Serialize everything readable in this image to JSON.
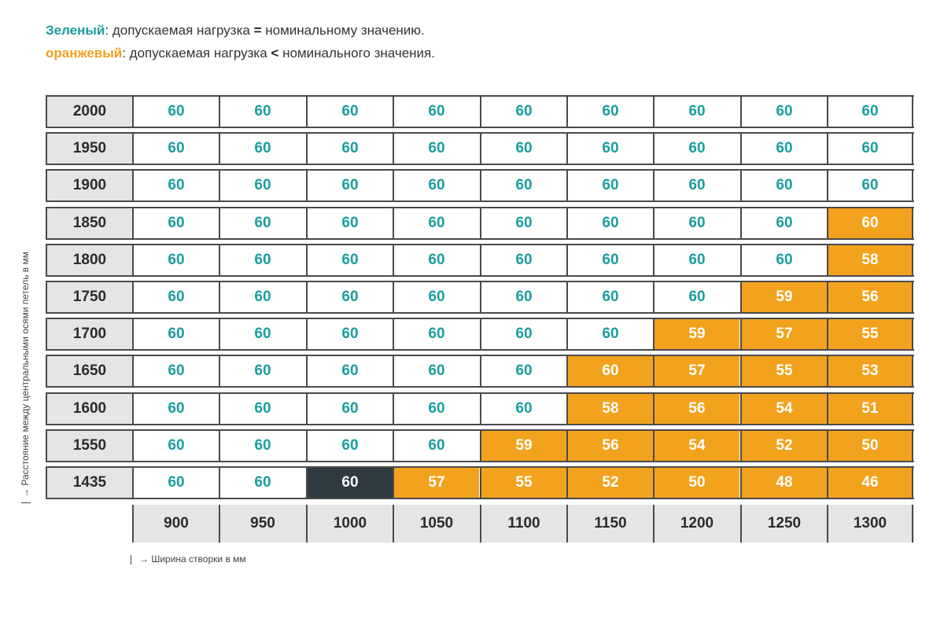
{
  "legend": {
    "green_word": "Зеленый",
    "green_rest": ": допускаемая нагрузка ",
    "green_sym": "=",
    "green_tail": " номинальному значению.",
    "orange_word": "оранжевый",
    "orange_rest": ": допускаемая нагрузка ",
    "orange_sym": "<",
    "orange_tail": " номинального значения."
  },
  "colors": {
    "green_text": "#1a9e9e",
    "orange_fill": "#f3a21e",
    "dark_fill": "#2f3b41",
    "header_gray": "#e4e5e6"
  },
  "axes": {
    "y_label": "Расстояние между центральными осями петель в мм",
    "x_label": "Ширина створки в мм",
    "arrow": "→"
  },
  "columns": [
    "900",
    "950",
    "1000",
    "1050",
    "1100",
    "1150",
    "1200",
    "1250",
    "1300"
  ],
  "rows": [
    {
      "label": "2000",
      "cells": [
        {
          "v": "60",
          "s": "green"
        },
        {
          "v": "60",
          "s": "green"
        },
        {
          "v": "60",
          "s": "green"
        },
        {
          "v": "60",
          "s": "green"
        },
        {
          "v": "60",
          "s": "green"
        },
        {
          "v": "60",
          "s": "green"
        },
        {
          "v": "60",
          "s": "green"
        },
        {
          "v": "60",
          "s": "green"
        },
        {
          "v": "60",
          "s": "green"
        }
      ]
    },
    {
      "label": "1950",
      "cells": [
        {
          "v": "60",
          "s": "green"
        },
        {
          "v": "60",
          "s": "green"
        },
        {
          "v": "60",
          "s": "green"
        },
        {
          "v": "60",
          "s": "green"
        },
        {
          "v": "60",
          "s": "green"
        },
        {
          "v": "60",
          "s": "green"
        },
        {
          "v": "60",
          "s": "green"
        },
        {
          "v": "60",
          "s": "green"
        },
        {
          "v": "60",
          "s": "green"
        }
      ]
    },
    {
      "label": "1900",
      "cells": [
        {
          "v": "60",
          "s": "green"
        },
        {
          "v": "60",
          "s": "green"
        },
        {
          "v": "60",
          "s": "green"
        },
        {
          "v": "60",
          "s": "green"
        },
        {
          "v": "60",
          "s": "green"
        },
        {
          "v": "60",
          "s": "green"
        },
        {
          "v": "60",
          "s": "green"
        },
        {
          "v": "60",
          "s": "green"
        },
        {
          "v": "60",
          "s": "green"
        }
      ]
    },
    {
      "label": "1850",
      "cells": [
        {
          "v": "60",
          "s": "green"
        },
        {
          "v": "60",
          "s": "green"
        },
        {
          "v": "60",
          "s": "green"
        },
        {
          "v": "60",
          "s": "green"
        },
        {
          "v": "60",
          "s": "green"
        },
        {
          "v": "60",
          "s": "green"
        },
        {
          "v": "60",
          "s": "green"
        },
        {
          "v": "60",
          "s": "green"
        },
        {
          "v": "60",
          "s": "orange"
        }
      ]
    },
    {
      "label": "1800",
      "cells": [
        {
          "v": "60",
          "s": "green"
        },
        {
          "v": "60",
          "s": "green"
        },
        {
          "v": "60",
          "s": "green"
        },
        {
          "v": "60",
          "s": "green"
        },
        {
          "v": "60",
          "s": "green"
        },
        {
          "v": "60",
          "s": "green"
        },
        {
          "v": "60",
          "s": "green"
        },
        {
          "v": "60",
          "s": "green"
        },
        {
          "v": "58",
          "s": "orange"
        }
      ]
    },
    {
      "label": "1750",
      "cells": [
        {
          "v": "60",
          "s": "green"
        },
        {
          "v": "60",
          "s": "green"
        },
        {
          "v": "60",
          "s": "green"
        },
        {
          "v": "60",
          "s": "green"
        },
        {
          "v": "60",
          "s": "green"
        },
        {
          "v": "60",
          "s": "green"
        },
        {
          "v": "60",
          "s": "green"
        },
        {
          "v": "59",
          "s": "orange"
        },
        {
          "v": "56",
          "s": "orange"
        }
      ]
    },
    {
      "label": "1700",
      "cells": [
        {
          "v": "60",
          "s": "green"
        },
        {
          "v": "60",
          "s": "green"
        },
        {
          "v": "60",
          "s": "green"
        },
        {
          "v": "60",
          "s": "green"
        },
        {
          "v": "60",
          "s": "green"
        },
        {
          "v": "60",
          "s": "green"
        },
        {
          "v": "59",
          "s": "orange"
        },
        {
          "v": "57",
          "s": "orange"
        },
        {
          "v": "55",
          "s": "orange"
        }
      ]
    },
    {
      "label": "1650",
      "cells": [
        {
          "v": "60",
          "s": "green"
        },
        {
          "v": "60",
          "s": "green"
        },
        {
          "v": "60",
          "s": "green"
        },
        {
          "v": "60",
          "s": "green"
        },
        {
          "v": "60",
          "s": "green"
        },
        {
          "v": "60",
          "s": "orange"
        },
        {
          "v": "57",
          "s": "orange"
        },
        {
          "v": "55",
          "s": "orange"
        },
        {
          "v": "53",
          "s": "orange"
        }
      ]
    },
    {
      "label": "1600",
      "cells": [
        {
          "v": "60",
          "s": "green"
        },
        {
          "v": "60",
          "s": "green"
        },
        {
          "v": "60",
          "s": "green"
        },
        {
          "v": "60",
          "s": "green"
        },
        {
          "v": "60",
          "s": "green"
        },
        {
          "v": "58",
          "s": "orange"
        },
        {
          "v": "56",
          "s": "orange"
        },
        {
          "v": "54",
          "s": "orange"
        },
        {
          "v": "51",
          "s": "orange"
        }
      ]
    },
    {
      "label": "1550",
      "cells": [
        {
          "v": "60",
          "s": "green"
        },
        {
          "v": "60",
          "s": "green"
        },
        {
          "v": "60",
          "s": "green"
        },
        {
          "v": "60",
          "s": "green"
        },
        {
          "v": "59",
          "s": "orange"
        },
        {
          "v": "56",
          "s": "orange"
        },
        {
          "v": "54",
          "s": "orange"
        },
        {
          "v": "52",
          "s": "orange"
        },
        {
          "v": "50",
          "s": "orange"
        }
      ]
    },
    {
      "label": "1435",
      "cells": [
        {
          "v": "60",
          "s": "green"
        },
        {
          "v": "60",
          "s": "green"
        },
        {
          "v": "60",
          "s": "dark"
        },
        {
          "v": "57",
          "s": "orange"
        },
        {
          "v": "55",
          "s": "orange"
        },
        {
          "v": "52",
          "s": "orange"
        },
        {
          "v": "50",
          "s": "orange"
        },
        {
          "v": "48",
          "s": "orange"
        },
        {
          "v": "46",
          "s": "orange"
        }
      ]
    }
  ]
}
